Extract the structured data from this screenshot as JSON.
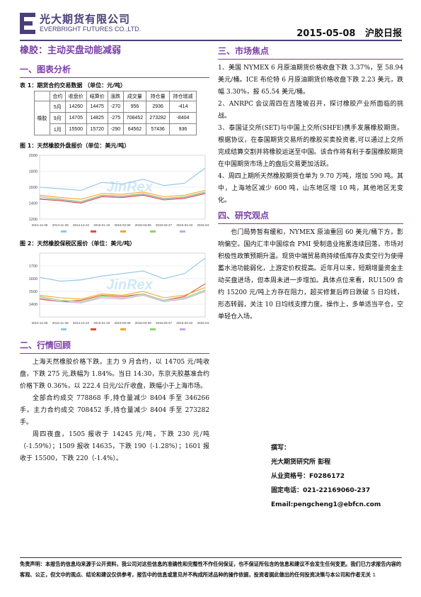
{
  "header": {
    "company_cn": "光大期货有限公司",
    "company_en": "EVERBRIGHT FUTURES CO.,LTD.",
    "date": "2015-05-08",
    "report_name": "沪胶日报"
  },
  "main_title": "橡胶：主动买盘动能减弱",
  "sections": {
    "s1": "一、图表分析",
    "s2": "二、行情回顾",
    "s3": "三、市场焦点",
    "s4": "四、研究观点"
  },
  "table1": {
    "caption": "表 1：期货合约交易数据  （单位：元/吨）",
    "headers": [
      "",
      "合约",
      "收盘价",
      "结算价",
      "涨跌",
      "成交量",
      "持仓量",
      "持仓增减"
    ],
    "row_group_label": "橡胶",
    "rows": [
      [
        "5月",
        "14260",
        "14475",
        "-270",
        "956",
        "2936",
        "-414"
      ],
      [
        "9月",
        "14705",
        "14825",
        "-275",
        "708452",
        "273282",
        "-8404"
      ],
      [
        "1月",
        "15500",
        "15720",
        "-290",
        "64562",
        "57436",
        "936"
      ]
    ]
  },
  "chart1": {
    "caption": "图 1：天然橡胶外盘报价（单位：美元/吨）",
    "watermark": "JinRex"
  },
  "chart2": {
    "caption": "图 2：天然橡胶保税区报价（单位：美元/吨）",
    "watermark": "JinRex"
  },
  "chart_data": [
    {
      "type": "line",
      "ylim": [
        1200,
        2000
      ],
      "yticks": [
        "2000",
        "1800",
        "1600",
        "1400",
        "1200"
      ],
      "x": [
        "2014-11-06",
        "2014-11-28",
        "2014-12-22",
        "2015-01-15",
        "2015-02-06",
        "2015-03-05",
        "2015-03-27",
        "2015-04-22",
        "2015-04-27"
      ],
      "series": [
        {
          "name": "",
          "color": "#8ec6ea",
          "values": [
            1600,
            1580,
            1560,
            1660,
            1640,
            1700,
            1620,
            1650,
            1840
          ]
        },
        {
          "name": "",
          "color": "#e64b3c",
          "values": [
            1450,
            1430,
            1400,
            1480,
            1470,
            1500,
            1440,
            1460,
            1520
          ]
        },
        {
          "name": "",
          "color": "#f5a623",
          "values": [
            1500,
            1470,
            1450,
            1520,
            1510,
            1540,
            1480,
            1500,
            1560
          ]
        },
        {
          "name": "",
          "color": "#8fd175",
          "values": [
            1480,
            1450,
            1420,
            1500,
            1490,
            1520,
            1460,
            1480,
            1540
          ]
        },
        {
          "name": "",
          "color": "#c6a8e0",
          "values": [
            1460,
            1440,
            1410,
            1490,
            1480,
            1510,
            1450,
            1470,
            1530
          ]
        }
      ]
    },
    {
      "type": "line",
      "ylim": [
        1300,
        1800
      ],
      "yticks": [
        "1700",
        "1600",
        "1500",
        "1400"
      ],
      "x": [
        "2014-11-06",
        "2014-11-28",
        "2014-12-22",
        "2015-01-15",
        "2015-02-06",
        "2015-03-05",
        "2015-03-27",
        "2015-04-22",
        "2015-04-27"
      ],
      "series": [
        {
          "name": "",
          "color": "#8ec6ea",
          "values": [
            1610,
            1580,
            1590,
            1620,
            1640,
            1660,
            1600,
            1640,
            1760
          ]
        },
        {
          "name": "",
          "color": "#e64b3c",
          "values": [
            1440,
            1420,
            1430,
            1470,
            1460,
            1480,
            1430,
            1460,
            1560
          ]
        },
        {
          "name": "",
          "color": "#f5a623",
          "values": [
            1470,
            1450,
            1440,
            1480,
            1470,
            1500,
            1450,
            1470,
            1530
          ]
        },
        {
          "name": "",
          "color": "#8fd175",
          "values": [
            1460,
            1430,
            1420,
            1460,
            1450,
            1480,
            1430,
            1450,
            1510
          ]
        },
        {
          "name": "",
          "color": "#c6a8e0",
          "values": [
            1450,
            1420,
            1410,
            1450,
            1440,
            1470,
            1420,
            1440,
            1500
          ]
        }
      ]
    }
  ],
  "review": [
    "上海天然橡胶价格下跌。主力 9 月合约，以 14705 元/吨收盘，下跌 275 元,跌幅为 1.84%。当日 14:30，东京天胶基准合约价格下跌 0.36%，以 222.4 日元/公斤收盘，跌幅小于上海市场。",
    "全部合约成交 778868 手,持仓量减少 8404 手至 346266 手。主力合约成交 708452 手,持仓量减少 8404 手至 273282 手。",
    "周四夜盘，1505 报收于 14245 元/吨，下跌 230 元/吨（-1.59%）；1509 报收 14635，下跌 190（-1.28%）；1601 报收于 15500，下跌 220（-1.4%）。"
  ],
  "focus": [
    "1、美国 NYMEX 6 月原油期货价格收盘下跌 3.37%，至 58.94 美元/桶。ICE 布伦特 6 月原油期货价格收盘下跌 2.23 美元，跌幅 3.30%，报 65.54 美元/桶。",
    "2、ANRPC 会议周四在吉隆坡召开，探讨橡胶产业所面临的挑战。",
    "3、泰国证交所(SET)与中国上交所(SHFE)携手发展橡胶期货。根据协议，在泰国期货交易所的橡胶买卖投资者,可以通过上交所完成结算交割并将橡胶运送至中国。该合作将有利于泰国橡胶期货在中国期货市场上的盘后交易更加活跃。",
    "4、周四上期所天然橡胶期货仓单为 9.70 万吨，增加 590 吨。其中，上海地区减少 600 吨，山东地区增 10 吨，其他地区无变化。"
  ],
  "view": "也门局势暂有缓和，NYMEX 原油重回 60 美元/桶下方，影响偏空。国内汇丰中国综合 PMI 受制造业拖累连续回落，市场对积极性政策预期升温。现货中端贸易商持续低库存及卖空行为使得蓄水池功能弱化，上游定价权提高。近年月以来，短期增量资金主动买盘进场，但本周未进一步增加。具体点位来看，RU1509 合约 15200 元/吨上方存在阻力，超买修复后昨日跌破 5 日均线，形态转弱，关注 10 日均线支撑力度。操作上，多单适当平仓，空单轻仓入场。",
  "contact": {
    "title": "撰写：",
    "author": "光大期货研究所  彭程",
    "license": "从业资格号：F0286172",
    "phone": "固定电话：021-22169060-237",
    "email": "Email:pengcheng1@ebfcn.com"
  },
  "disclaimer": "免责声明：本报告的信息均来源于公开资料，我公司对这些信息的准确性和完整性不作任何保证，也不保证所包含的信息和建议不会发生任何变更。我们已力求报告内容的客观、公正，但文中的观点、结论和建议仅供参考，报告中的信息或意见并不构成所述品种的操作依据，投资者据此做出的任何投资决策与本公司和作者无关",
  "page_number": "1"
}
